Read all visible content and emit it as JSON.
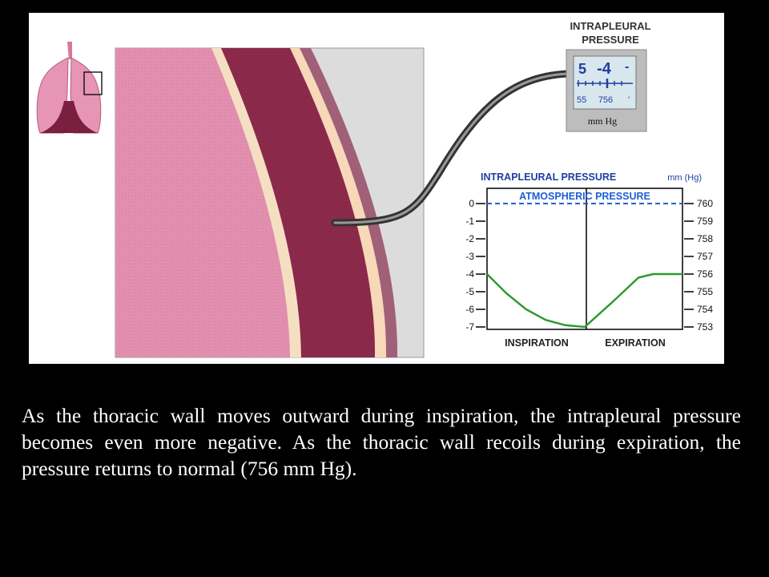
{
  "gauge": {
    "title_line1": "Intrapleural",
    "title_line2": "Pressure",
    "display_value": "-4",
    "display_left_digit": "5",
    "display_right_mark": "-",
    "scale_left": "55",
    "scale_center": "756",
    "scale_right": "'",
    "unit": "mm Hg"
  },
  "chart_data": {
    "type": "line",
    "title": "Intrapleural Pressure",
    "title_unit": "mm (Hg)",
    "reference_line_label": "Atmospheric Pressure",
    "left_axis_ticks": [
      "0",
      "-1",
      "-2",
      "-3",
      "-4",
      "-5",
      "-6",
      "-7"
    ],
    "right_axis_ticks": [
      "760",
      "759",
      "758",
      "757",
      "756",
      "755",
      "754",
      "753"
    ],
    "left_ylim": [
      -7,
      0
    ],
    "right_ylim": [
      753,
      760
    ],
    "phases": [
      "Inspiration",
      "Expiration"
    ],
    "reference_value": 0,
    "series": [
      {
        "points": [
          {
            "t": 0.0,
            "y": -4.0
          },
          {
            "t": 0.2,
            "y": -5.1
          },
          {
            "t": 0.4,
            "y": -6.0
          },
          {
            "t": 0.6,
            "y": -6.6
          },
          {
            "t": 0.8,
            "y": -6.9
          },
          {
            "t": 1.0,
            "y": -7.0
          },
          {
            "t": 1.3,
            "y": -5.5
          },
          {
            "t": 1.55,
            "y": -4.2
          },
          {
            "t": 1.7,
            "y": -4.0
          },
          {
            "t": 2.0,
            "y": -4.0
          }
        ]
      }
    ],
    "colors": {
      "line": "#2e9a2e",
      "reference": "#1f5fd6",
      "text": "#1f3fa0"
    }
  },
  "caption": "As the thoracic wall moves outward during inspiration, the intrapleural pressure becomes even more negative. As the thoracic wall recoils during expiration, the pressure returns to normal (756 mm Hg)."
}
